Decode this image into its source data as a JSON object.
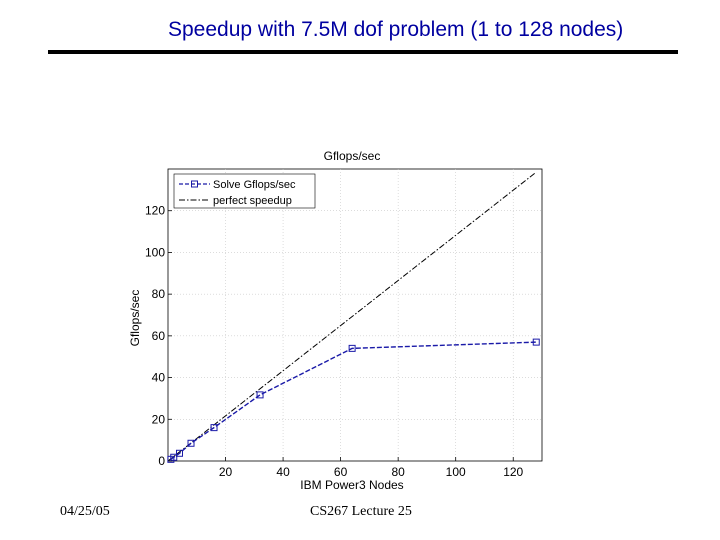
{
  "slide": {
    "title": "Speedup with 7.5M dof problem (1 to 128 nodes)",
    "footer_date": "04/25/05",
    "footer_course": "CS267 Lecture 25"
  },
  "colors": {
    "title": "#0000a0",
    "solve_series": "#1a1aa8",
    "perfect_series": "#000000",
    "grid": "#c8c8c8"
  },
  "chart_data": {
    "type": "line",
    "title": "Gflops/sec",
    "xlabel": "IBM Power3 Nodes",
    "ylabel": "Gflops/sec",
    "xlim": [
      0,
      130
    ],
    "ylim": [
      0,
      140
    ],
    "xticks": [
      20,
      40,
      60,
      80,
      100,
      120
    ],
    "yticks": [
      0,
      20,
      40,
      60,
      80,
      100,
      120
    ],
    "grid": true,
    "legend_position": "top-left",
    "series": [
      {
        "name": "Solve Gflops/sec",
        "style": "dashed-square-markers",
        "x": [
          1,
          2,
          4,
          8,
          16,
          32,
          64,
          128
        ],
        "y": [
          0.8,
          1.8,
          3.7,
          8.5,
          16.0,
          31.7,
          54.0,
          57.0
        ]
      },
      {
        "name": "perfect speedup",
        "style": "dash-dot",
        "x": [
          0,
          128
        ],
        "y": [
          0,
          138.5
        ]
      }
    ]
  }
}
